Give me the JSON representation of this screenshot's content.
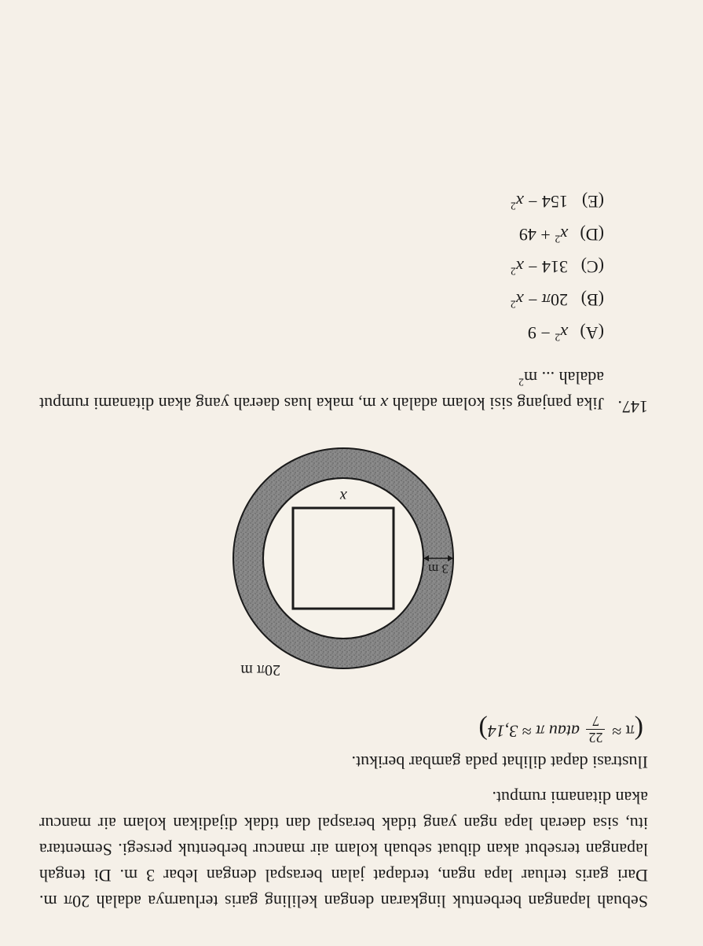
{
  "intro": "Sebuah lapangan berbentuk lingkaran dengan keliling garis terluarnya adalah 20π m. Dari garis terluar lapa ngan, terdapat jalan beraspal dengan lebar 3 m. Di tengah lapangan tersebut akan dibuat sebuah kolam air mancur berbentuk persegi. Sementara itu, sisa daerah lapa ngan yang tidak beraspal dan tidak dijadikan kolam air mancur akan ditanami rumput.",
  "illustration_line": "Ilustrasi dapat dilihat pada gambar berikut.",
  "pi_note": {
    "prefix": "π ≈",
    "frac_num": "22",
    "frac_den": "7",
    "mid": "atau π ≈ 3,14"
  },
  "figure": {
    "outer_label": "20π m",
    "ring_label": "3 m",
    "square_label": "x",
    "outer_radius": 140,
    "inner_radius": 102,
    "square_half": 64,
    "ring_fill": "#888888",
    "ring_texture": "#6d6d6d",
    "bg": "#f6f2ea",
    "stroke": "#1a1a1a"
  },
  "question": {
    "number": "147.",
    "text": "Jika panjang sisi kolam adalah x m, maka luas daerah yang akan ditanami rumput adalah ... m²"
  },
  "options": [
    {
      "label": "(A)",
      "text": "x² − 9"
    },
    {
      "label": "(B)",
      "text": "20π − x²"
    },
    {
      "label": "(C)",
      "text": "314 − x²"
    },
    {
      "label": "(D)",
      "text": "x² + 49"
    },
    {
      "label": "(E)",
      "text": "154 − x²"
    }
  ]
}
